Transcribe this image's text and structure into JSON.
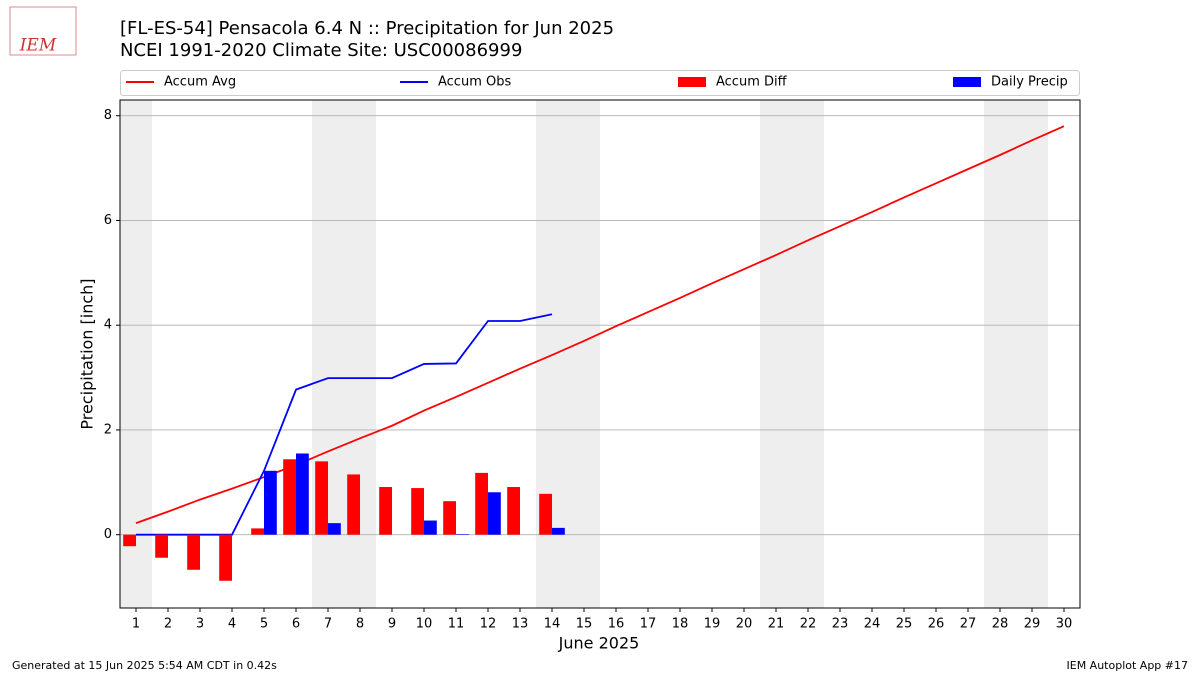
{
  "chart_data": {
    "type": "combo",
    "title": "[FL-ES-54] Pensacola 6.4 N :: Precipitation for Jun 2025",
    "subtitle": "NCEI 1991-2020 Climate Site: USC00086999",
    "logo_text": "IEM",
    "x_label": "June 2025",
    "y_label": "Precipitation [inch]",
    "footer_left": "Generated at 15 Jun 2025 5:54 AM CDT in 0.42s",
    "footer_right": "IEM Autoplot App #17",
    "x": [
      1,
      2,
      3,
      4,
      5,
      6,
      7,
      8,
      9,
      10,
      11,
      12,
      13,
      14,
      15,
      16,
      17,
      18,
      19,
      20,
      21,
      22,
      23,
      24,
      25,
      26,
      27,
      28,
      29,
      30
    ],
    "xlim": [
      0.5,
      30.5
    ],
    "xticks": [
      1,
      2,
      3,
      4,
      5,
      6,
      7,
      8,
      9,
      10,
      11,
      12,
      13,
      14,
      15,
      16,
      17,
      18,
      19,
      20,
      21,
      22,
      23,
      24,
      25,
      26,
      27,
      28,
      29,
      30
    ],
    "ylim": [
      -1.4,
      8.3
    ],
    "yticks": [
      0,
      2,
      4,
      6,
      8
    ],
    "grid": true,
    "shaded_days": [
      1,
      7,
      8,
      14,
      15,
      21,
      22,
      28,
      29
    ],
    "series": [
      {
        "name": "Accum Avg",
        "type": "line",
        "color": "#ff0000",
        "values": [
          0.22,
          0.44,
          0.67,
          0.88,
          1.1,
          1.33,
          1.59,
          1.84,
          2.08,
          2.37,
          2.63,
          2.9,
          3.17,
          3.43,
          3.7,
          3.98,
          4.25,
          4.52,
          4.8,
          5.07,
          5.34,
          5.62,
          5.89,
          6.16,
          6.44,
          6.71,
          6.98,
          7.25,
          7.53,
          7.8
        ]
      },
      {
        "name": "Accum Obs",
        "type": "line",
        "color": "#0000ff",
        "values": [
          0,
          0,
          0,
          0,
          1.22,
          2.77,
          2.99,
          2.99,
          2.99,
          3.26,
          3.27,
          4.08,
          4.08,
          4.21,
          null,
          null,
          null,
          null,
          null,
          null,
          null,
          null,
          null,
          null,
          null,
          null,
          null,
          null,
          null,
          null
        ]
      },
      {
        "name": "Accum Diff",
        "type": "bar",
        "color": "#ff0000",
        "values": [
          -0.22,
          -0.44,
          -0.67,
          -0.88,
          0.12,
          1.44,
          1.4,
          1.15,
          0.91,
          0.89,
          0.64,
          1.18,
          0.91,
          0.78,
          null,
          null,
          null,
          null,
          null,
          null,
          null,
          null,
          null,
          null,
          null,
          null,
          null,
          null,
          null,
          null
        ]
      },
      {
        "name": "Daily Precip",
        "type": "bar",
        "color": "#0000ff",
        "values": [
          0,
          0,
          0,
          0,
          1.22,
          1.55,
          0.22,
          0,
          0,
          0.27,
          0.01,
          0.81,
          0,
          0.13,
          null,
          null,
          null,
          null,
          null,
          null,
          null,
          null,
          null,
          null,
          null,
          null,
          null,
          null,
          null,
          null
        ]
      }
    ]
  }
}
